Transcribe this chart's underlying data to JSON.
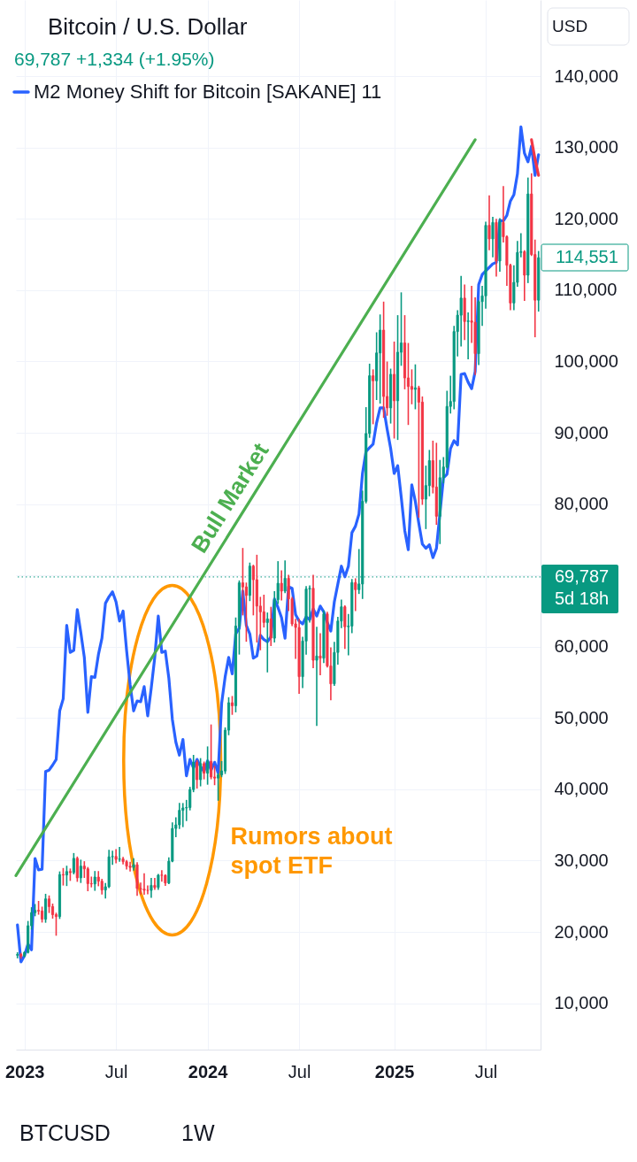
{
  "chart_data": {
    "type": "candlestick",
    "title": "Bitcoin / U.S. Dollar",
    "subtitle": "69,787 +1,334 (+1.95%)",
    "x": [
      "2022-12-19",
      "2022-12-26",
      "2023-01-02",
      "2023-01-09",
      "2023-01-16",
      "2023-01-23",
      "2023-01-30",
      "2023-02-06",
      "2023-02-13",
      "2023-02-20",
      "2023-02-27",
      "2023-03-06",
      "2023-03-13",
      "2023-03-20",
      "2023-03-27",
      "2023-04-03",
      "2023-04-10",
      "2023-04-17",
      "2023-04-24",
      "2023-05-01",
      "2023-05-08",
      "2023-05-15",
      "2023-05-22",
      "2023-05-29",
      "2023-06-05",
      "2023-06-12",
      "2023-06-19",
      "2023-06-26",
      "2023-07-03",
      "2023-07-10",
      "2023-07-17",
      "2023-07-24",
      "2023-07-31",
      "2023-08-07",
      "2023-08-14",
      "2023-08-21",
      "2023-08-28",
      "2023-09-04",
      "2023-09-11",
      "2023-09-18",
      "2023-09-25",
      "2023-10-02",
      "2023-10-09",
      "2023-10-16",
      "2023-10-23",
      "2023-10-30",
      "2023-11-06",
      "2023-11-13",
      "2023-11-20",
      "2023-11-27",
      "2023-12-04",
      "2023-12-11",
      "2023-12-18",
      "2023-12-25",
      "2024-01-01",
      "2024-01-08",
      "2024-01-15",
      "2024-01-22",
      "2024-01-29",
      "2024-02-05",
      "2024-02-12",
      "2024-02-19",
      "2024-02-26",
      "2024-03-04",
      "2024-03-11",
      "2024-03-18",
      "2024-03-25",
      "2024-04-01",
      "2024-04-08",
      "2024-04-15",
      "2024-04-22",
      "2024-04-29",
      "2024-05-06",
      "2024-05-13",
      "2024-05-20",
      "2024-05-27",
      "2024-06-03",
      "2024-06-10",
      "2024-06-17",
      "2024-06-24",
      "2024-07-01",
      "2024-07-08",
      "2024-07-15",
      "2024-07-22",
      "2024-07-29",
      "2024-08-05",
      "2024-08-12",
      "2024-08-19",
      "2024-08-26",
      "2024-09-02",
      "2024-09-09",
      "2024-09-16",
      "2024-09-23",
      "2024-09-30",
      "2024-10-07",
      "2024-10-14",
      "2024-10-21",
      "2024-10-28",
      "2024-11-04",
      "2024-11-11",
      "2024-11-18",
      "2024-11-25",
      "2024-12-02",
      "2024-12-09",
      "2024-12-16",
      "2024-12-23",
      "2024-12-30",
      "2025-01-06",
      "2025-01-13",
      "2025-01-20",
      "2025-01-27",
      "2025-02-03",
      "2025-02-10",
      "2025-02-17",
      "2025-02-24",
      "2025-03-03",
      "2025-03-10",
      "2025-03-17",
      "2025-03-24",
      "2025-03-31",
      "2025-04-07",
      "2025-04-14",
      "2025-04-21",
      "2025-04-28",
      "2025-05-05",
      "2025-05-12",
      "2025-05-19",
      "2025-05-26",
      "2025-06-02",
      "2025-06-09",
      "2025-06-16",
      "2025-06-23",
      "2025-06-30",
      "2025-07-07",
      "2025-07-14",
      "2025-07-21",
      "2025-07-28",
      "2025-08-04",
      "2025-08-11",
      "2025-08-18",
      "2025-08-25",
      "2025-09-01",
      "2025-09-08",
      "2025-09-15",
      "2025-09-22",
      "2025-09-29",
      "2025-10-06",
      "2025-10-13",
      "2025-10-20"
    ],
    "ohlc": [
      [
        16740,
        17060,
        16400,
        16840
      ],
      [
        16840,
        16970,
        16330,
        16610
      ],
      [
        16610,
        17180,
        16540,
        17130
      ],
      [
        17130,
        21440,
        17080,
        20870
      ],
      [
        20870,
        23370,
        20420,
        22710
      ],
      [
        22710,
        23820,
        22300,
        23030
      ],
      [
        23030,
        24250,
        22520,
        22930
      ],
      [
        22930,
        23450,
        21420,
        21790
      ],
      [
        21790,
        25250,
        21390,
        24630
      ],
      [
        24630,
        25020,
        22760,
        23560
      ],
      [
        23560,
        23880,
        21970,
        22430
      ],
      [
        22430,
        22600,
        19570,
        22160
      ],
      [
        22160,
        28390,
        21920,
        28040
      ],
      [
        28040,
        28870,
        26610,
        27990
      ],
      [
        27990,
        29190,
        26540,
        28470
      ],
      [
        28470,
        28800,
        27260,
        28330
      ],
      [
        28330,
        30970,
        28170,
        30320
      ],
      [
        30320,
        30480,
        27130,
        27590
      ],
      [
        27590,
        30040,
        26970,
        29230
      ],
      [
        29230,
        29820,
        27680,
        28850
      ],
      [
        28850,
        29010,
        25810,
        26780
      ],
      [
        26780,
        27670,
        26350,
        26740
      ],
      [
        26740,
        28450,
        25870,
        27700
      ],
      [
        27700,
        28440,
        26510,
        27120
      ],
      [
        27120,
        27350,
        25350,
        25880
      ],
      [
        25880,
        26770,
        24790,
        26340
      ],
      [
        26340,
        31430,
        26260,
        30540
      ],
      [
        30540,
        31280,
        29510,
        30590
      ],
      [
        30590,
        31500,
        29720,
        30170
      ],
      [
        30170,
        31820,
        29950,
        30240
      ],
      [
        30240,
        30430,
        29560,
        29860
      ],
      [
        29860,
        30000,
        28860,
        29230
      ],
      [
        29230,
        29740,
        28590,
        29050
      ],
      [
        29050,
        30240,
        28700,
        29420
      ],
      [
        29420,
        29690,
        25170,
        26100
      ],
      [
        26100,
        26830,
        25360,
        26010
      ],
      [
        26010,
        28140,
        25330,
        25840
      ],
      [
        25840,
        26410,
        25370,
        25830
      ],
      [
        25830,
        27470,
        24900,
        26530
      ],
      [
        26530,
        27480,
        26000,
        26240
      ],
      [
        26240,
        28050,
        25990,
        27970
      ],
      [
        27970,
        28580,
        27160,
        27940
      ],
      [
        27940,
        27990,
        26560,
        26860
      ],
      [
        26860,
        30380,
        26810,
        29920
      ],
      [
        29920,
        35280,
        29890,
        34520
      ],
      [
        34520,
        35980,
        33390,
        35020
      ],
      [
        35020,
        38000,
        34540,
        37060
      ],
      [
        37060,
        37980,
        34800,
        37390
      ],
      [
        37390,
        38420,
        35650,
        37450
      ],
      [
        37450,
        40250,
        37150,
        39970
      ],
      [
        39970,
        44730,
        39700,
        43780
      ],
      [
        43780,
        44000,
        40200,
        41360
      ],
      [
        41360,
        44280,
        40520,
        43610
      ],
      [
        43610,
        43800,
        41500,
        42270
      ],
      [
        42270,
        45920,
        40750,
        43930
      ],
      [
        43930,
        49000,
        41510,
        41730
      ],
      [
        41730,
        43200,
        40680,
        41580
      ],
      [
        41580,
        42200,
        38500,
        42030
      ],
      [
        42030,
        43860,
        41800,
        42580
      ],
      [
        42580,
        48590,
        42260,
        48300
      ],
      [
        48300,
        52820,
        47690,
        52140
      ],
      [
        52140,
        52990,
        50550,
        51730
      ],
      [
        51730,
        64000,
        50900,
        62900
      ],
      [
        62900,
        69200,
        59000,
        68960
      ],
      [
        68960,
        73750,
        64500,
        68390
      ],
      [
        68390,
        68900,
        60800,
        67200
      ],
      [
        67200,
        71700,
        66500,
        71300
      ],
      [
        71300,
        71400,
        64500,
        69400
      ],
      [
        69400,
        72800,
        60700,
        65700
      ],
      [
        65700,
        66900,
        59600,
        64900
      ],
      [
        64900,
        67200,
        62800,
        63400
      ],
      [
        63400,
        64700,
        56500,
        63900
      ],
      [
        63900,
        65500,
        60200,
        61200
      ],
      [
        61200,
        67700,
        60700,
        66600
      ],
      [
        66600,
        71900,
        66100,
        68900
      ],
      [
        68900,
        70600,
        66600,
        67800
      ],
      [
        67800,
        72000,
        67600,
        69600
      ],
      [
        69600,
        70000,
        65100,
        66700
      ],
      [
        66700,
        66900,
        63000,
        63200
      ],
      [
        63200,
        63800,
        58400,
        62700
      ],
      [
        62700,
        63800,
        53500,
        55800
      ],
      [
        55800,
        61300,
        54300,
        60800
      ],
      [
        60800,
        68400,
        59000,
        68100
      ],
      [
        68100,
        68500,
        63500,
        68200
      ],
      [
        68200,
        70000,
        57100,
        58100
      ],
      [
        58100,
        62700,
        49000,
        58700
      ],
      [
        58700,
        61800,
        56100,
        58400
      ],
      [
        58400,
        65000,
        57800,
        64600
      ],
      [
        64600,
        64800,
        57200,
        57300
      ],
      [
        57300,
        59800,
        52600,
        54800
      ],
      [
        54800,
        60600,
        54600,
        59200
      ],
      [
        59200,
        64100,
        57600,
        63600
      ],
      [
        63600,
        66500,
        62700,
        65600
      ],
      [
        65600,
        65700,
        59800,
        62800
      ],
      [
        62800,
        64500,
        58900,
        62900
      ],
      [
        62900,
        69400,
        62000,
        69000
      ],
      [
        69000,
        69500,
        65100,
        68000
      ],
      [
        68000,
        73600,
        67500,
        68800
      ],
      [
        68800,
        81800,
        66800,
        80400
      ],
      [
        80400,
        93500,
        80200,
        89900
      ],
      [
        89900,
        99600,
        89400,
        98000
      ],
      [
        98000,
        98800,
        91300,
        97300
      ],
      [
        97300,
        104000,
        94700,
        101200
      ],
      [
        101200,
        106500,
        94200,
        104400
      ],
      [
        104400,
        108300,
        92200,
        95100
      ],
      [
        95100,
        99900,
        92500,
        93500
      ],
      [
        93500,
        98900,
        91400,
        98200
      ],
      [
        98200,
        102700,
        89300,
        94500
      ],
      [
        94500,
        106400,
        89100,
        101300
      ],
      [
        101300,
        109600,
        99500,
        102600
      ],
      [
        102600,
        106400,
        96200,
        97700
      ],
      [
        97700,
        102500,
        91200,
        96500
      ],
      [
        96500,
        98800,
        94100,
        96100
      ],
      [
        96100,
        99500,
        93400,
        96300
      ],
      [
        96300,
        96500,
        78200,
        94300
      ],
      [
        94300,
        95000,
        80000,
        80700
      ],
      [
        80700,
        85300,
        76600,
        82600
      ],
      [
        82600,
        87500,
        81200,
        86100
      ],
      [
        86100,
        88800,
        81600,
        82400
      ],
      [
        82400,
        88500,
        77200,
        78300
      ],
      [
        78300,
        86100,
        74500,
        83700
      ],
      [
        83700,
        86500,
        83000,
        85200
      ],
      [
        85200,
        95800,
        85100,
        93700
      ],
      [
        93700,
        97900,
        92800,
        94400
      ],
      [
        94400,
        104900,
        93400,
        104200
      ],
      [
        104200,
        107100,
        100800,
        106500
      ],
      [
        106500,
        111900,
        102200,
        108900
      ],
      [
        108900,
        110700,
        103100,
        105600
      ],
      [
        105600,
        106800,
        100400,
        105700
      ],
      [
        105700,
        110500,
        102700,
        105500
      ],
      [
        105500,
        108900,
        98200,
        101100
      ],
      [
        101100,
        108500,
        99600,
        108400
      ],
      [
        108400,
        110500,
        105100,
        109200
      ],
      [
        109200,
        119500,
        107500,
        119100
      ],
      [
        119100,
        123200,
        115700,
        117200
      ],
      [
        117200,
        120200,
        114700,
        119500
      ],
      [
        119500,
        119900,
        112000,
        114100
      ],
      [
        114100,
        120000,
        112700,
        119600
      ],
      [
        119500,
        124500,
        116800,
        117500
      ],
      [
        117500,
        117600,
        110700,
        113500
      ],
      [
        113500,
        113600,
        107300,
        108200
      ],
      [
        108200,
        113400,
        107300,
        111100
      ],
      [
        111100,
        116800,
        110600,
        115300
      ],
      [
        115300,
        117900,
        114700,
        115400
      ],
      [
        115400,
        115500,
        108600,
        112100
      ],
      [
        112100,
        125700,
        111100,
        123500
      ],
      [
        123500,
        126300,
        114900,
        115000
      ],
      [
        115000,
        117000,
        103500,
        108600
      ],
      [
        108600,
        115400,
        107100,
        114551
      ]
    ],
    "colors": [
      "#089981",
      "#f23645",
      "#089981",
      "#089981",
      "#089981",
      "#089981",
      "#f23645",
      "#f23645",
      "#089981",
      "#f23645",
      "#f23645",
      "#f23645",
      "#089981",
      "#f23645",
      "#089981",
      "#f23645",
      "#089981",
      "#f23645",
      "#089981",
      "#f23645",
      "#f23645",
      "#f23645",
      "#089981",
      "#f23645",
      "#f23645",
      "#089981",
      "#089981",
      "#089981",
      "#f23645",
      "#089981",
      "#f23645",
      "#f23645",
      "#f23645",
      "#089981",
      "#f23645",
      "#f23645",
      "#f23645",
      "#f23645",
      "#089981",
      "#f23645",
      "#089981",
      "#f23645",
      "#f23645",
      "#089981",
      "#089981",
      "#089981",
      "#089981",
      "#089981",
      "#089981",
      "#089981",
      "#089981",
      "#f23645",
      "#089981",
      "#f23645",
      "#089981",
      "#f23645",
      "#f23645",
      "#089981",
      "#089981",
      "#089981",
      "#089981",
      "#f23645",
      "#089981",
      "#089981",
      "#f23645",
      "#f23645",
      "#089981",
      "#f23645",
      "#f23645",
      "#f23645",
      "#f23645",
      "#089981",
      "#f23645",
      "#089981",
      "#089981",
      "#f23645",
      "#089981",
      "#f23645",
      "#f23645",
      "#f23645",
      "#f23645",
      "#089981",
      "#089981",
      "#089981",
      "#f23645",
      "#089981",
      "#f23645",
      "#089981",
      "#f23645",
      "#f23645",
      "#089981",
      "#089981",
      "#089981",
      "#f23645",
      "#089981",
      "#089981",
      "#f23645",
      "#089981",
      "#089981",
      "#089981",
      "#089981",
      "#f23645",
      "#089981",
      "#089981",
      "#f23645",
      "#f23645",
      "#089981",
      "#f23645",
      "#089981",
      "#089981",
      "#f23645",
      "#f23645",
      "#f23645",
      "#089981",
      "#f23645",
      "#f23645",
      "#089981",
      "#089981",
      "#f23645",
      "#f23645",
      "#089981",
      "#089981",
      "#089981",
      "#089981",
      "#089981",
      "#089981",
      "#089981",
      "#f23645",
      "#089981",
      "#f23645",
      "#f23645",
      "#089981",
      "#089981",
      "#089981",
      "#f23645",
      "#089981",
      "#f23645",
      "#089981",
      "#f23645",
      "#f23645",
      "#f23645",
      "#089981",
      "#089981",
      "#089981",
      "#f23645",
      "#089981",
      "#f23645",
      "#f23645",
      "#089981"
    ],
    "series": [
      {
        "type": "line",
        "name": "M2 Money Shift for Bitcoin [SAKANE] 11",
        "color": "#2962ff",
        "x": [
          "2022-12-19",
          "2022-12-26",
          "2023-01-02",
          "2023-01-09",
          "2023-01-16",
          "2023-01-23",
          "2023-01-30",
          "2023-02-06",
          "2023-02-13",
          "2023-02-20",
          "2023-02-27",
          "2023-03-06",
          "2023-03-13",
          "2023-03-20",
          "2023-03-27",
          "2023-04-03",
          "2023-04-10",
          "2023-04-17",
          "2023-04-24",
          "2023-05-01",
          "2023-05-08",
          "2023-05-15",
          "2023-05-22",
          "2023-05-29",
          "2023-06-05",
          "2023-06-12",
          "2023-06-19",
          "2023-06-26",
          "2023-07-03",
          "2023-07-10",
          "2023-07-17",
          "2023-07-24",
          "2023-07-31",
          "2023-08-07",
          "2023-08-14",
          "2023-08-21",
          "2023-08-28",
          "2023-09-04",
          "2023-09-11",
          "2023-09-18",
          "2023-09-25",
          "2023-10-02",
          "2023-10-09",
          "2023-10-16",
          "2023-10-23",
          "2023-10-30",
          "2023-11-06",
          "2023-11-13",
          "2023-11-20",
          "2023-11-27",
          "2023-12-04",
          "2023-12-11",
          "2023-12-18",
          "2023-12-25",
          "2024-01-01",
          "2024-01-08",
          "2024-01-15",
          "2024-01-22",
          "2024-01-29",
          "2024-02-05",
          "2024-02-12",
          "2024-02-19",
          "2024-02-26",
          "2024-03-04",
          "2024-03-11",
          "2024-03-18",
          "2024-03-25",
          "2024-04-01",
          "2024-04-08",
          "2024-04-15",
          "2024-04-22",
          "2024-04-29",
          "2024-05-06",
          "2024-05-13",
          "2024-05-20",
          "2024-05-27",
          "2024-06-03",
          "2024-06-10",
          "2024-06-17",
          "2024-06-24",
          "2024-07-01",
          "2024-07-08",
          "2024-07-15",
          "2024-07-22",
          "2024-07-29",
          "2024-08-05",
          "2024-08-12",
          "2024-08-19",
          "2024-08-26",
          "2024-09-02",
          "2024-09-09",
          "2024-09-16",
          "2024-09-23",
          "2024-09-30",
          "2024-10-07",
          "2024-10-14",
          "2024-10-21",
          "2024-10-28",
          "2024-11-04",
          "2024-11-11",
          "2024-11-18",
          "2024-11-25",
          "2024-12-02",
          "2024-12-09",
          "2024-12-16",
          "2024-12-23",
          "2024-12-30",
          "2025-01-06",
          "2025-01-13",
          "2025-01-20",
          "2025-01-27",
          "2025-02-03",
          "2025-02-10",
          "2025-02-17",
          "2025-02-24",
          "2025-03-03",
          "2025-03-10",
          "2025-03-17",
          "2025-03-24",
          "2025-03-31",
          "2025-04-14",
          "2025-04-21",
          "2025-04-28",
          "2025-05-05",
          "2025-05-12",
          "2025-05-19",
          "2025-05-26",
          "2025-06-02",
          "2025-06-09",
          "2025-06-16",
          "2025-06-23",
          "2025-06-30",
          "2025-07-07",
          "2025-07-14",
          "2025-07-21",
          "2025-07-28",
          "2025-08-04",
          "2025-08-11",
          "2025-08-18",
          "2025-08-25",
          "2025-09-01",
          "2025-09-08",
          "2025-09-15",
          "2025-09-22",
          "2025-09-29",
          "2025-10-06",
          "2025-10-13",
          "2025-10-20"
        ],
        "values": [
          21000,
          15800,
          16700,
          18300,
          17500,
          30300,
          28700,
          28800,
          42500,
          42700,
          43400,
          44200,
          51000,
          52700,
          63000,
          59200,
          59500,
          65200,
          62000,
          58500,
          50800,
          55800,
          55700,
          58900,
          61200,
          66100,
          67000,
          67700,
          66300,
          63600,
          65000,
          59500,
          54700,
          51000,
          52400,
          52300,
          54400,
          50300,
          54200,
          58500,
          64300,
          59200,
          59400,
          55600,
          49800,
          46600,
          44800,
          47000,
          41900,
          44200,
          43000,
          44200,
          43200,
          42500,
          44000,
          42700,
          43800,
          42300,
          52100,
          55800,
          58500,
          56200,
          61800,
          62600,
          67800,
          63000,
          61800,
          58400,
          58700,
          61600,
          61000,
          60700,
          61400,
          66700,
          65500,
          64100,
          61200,
          68400,
          68200,
          64500,
          63600,
          63200,
          64200,
          63800,
          65300,
          64300,
          65700,
          64900,
          63400,
          62200,
          66300,
          68800,
          71300,
          69800,
          71300,
          76000,
          76900,
          78600,
          84300,
          87400,
          87900,
          88400,
          91400,
          93500,
          93500,
          90500,
          87800,
          84300,
          85400,
          81000,
          76300,
          73600,
          82700,
          80400,
          77300,
          74400,
          73800,
          74300,
          72500,
          73800,
          83700,
          84200,
          87800,
          88900,
          88300,
          98200,
          98300,
          97100,
          96200,
          98600,
          110800,
          112200,
          112700,
          113200,
          113700,
          113900,
          119800,
          119700,
          120500,
          122500,
          123400,
          126300,
          132900,
          129200,
          128000,
          130200,
          126100,
          129000
        ]
      },
      {
        "type": "line",
        "color": "#f23645",
        "x": [
          "2025-10-06",
          "2025-10-13",
          "2025-10-20"
        ],
        "values": [
          131100,
          128400,
          126100
        ]
      },
      {
        "type": "line",
        "name": "Bull Market",
        "color": "#4caf50",
        "x": [
          "2022-12-16",
          "2025-06-16"
        ],
        "values": [
          27900,
          131100
        ]
      }
    ],
    "xlim": [
      "2022-12-16",
      "2025-10-24"
    ],
    "xticks": [
      {
        "value": "2023-01-02",
        "label": "2023"
      },
      {
        "value": "2023-07-03",
        "label": "Jul"
      },
      {
        "value": "2024-01-01",
        "label": "2024"
      },
      {
        "value": "2024-07-01",
        "label": "Jul"
      },
      {
        "value": "2025-01-06",
        "label": "2025"
      },
      {
        "value": "2025-07-07",
        "label": "Jul"
      }
    ],
    "ylim": [
      3500,
      150700
    ],
    "yticks": [
      {
        "value": 10000,
        "label": "10,000"
      },
      {
        "value": 20000,
        "label": "20,000"
      },
      {
        "value": 30000,
        "label": "30,000"
      },
      {
        "value": 40000,
        "label": "40,000"
      },
      {
        "value": 50000,
        "label": "50,000"
      },
      {
        "value": 60000,
        "label": "60,000"
      },
      {
        "value": 70000,
        "label": null
      },
      {
        "value": 80000,
        "label": "80,000"
      },
      {
        "value": 90000,
        "label": "90,000"
      },
      {
        "value": 100000,
        "label": "100,000"
      },
      {
        "value": 110000,
        "label": "110,000"
      },
      {
        "value": 120000,
        "label": "120,000"
      },
      {
        "value": 130000,
        "label": "130,000"
      },
      {
        "value": 140000,
        "label": "140,000"
      }
    ],
    "ref_lines": [
      {
        "axis": "y",
        "value": 69787,
        "label": "69,787\n5d 18h",
        "color": "#089981",
        "line_style": "dotted"
      }
    ],
    "annotations": [
      "114,551",
      "USD",
      "BTCUSD",
      "1W",
      "Rumors about\nspot ETF"
    ],
    "grid": true,
    "legend": "top left"
  }
}
